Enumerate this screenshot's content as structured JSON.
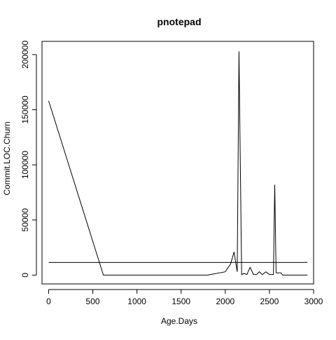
{
  "chart_data": {
    "type": "line",
    "title": "pnotepad",
    "xlabel": "Age.Days",
    "ylabel": "Commit.LOC.Churn",
    "xlim": [
      -75,
      3000
    ],
    "ylim": [
      -8000,
      212000
    ],
    "x_ticks": [
      0,
      500,
      1000,
      1500,
      2000,
      2500,
      3000
    ],
    "x_tick_labels": [
      "0",
      "500",
      "1000",
      "1500",
      "2000",
      "2500",
      "3000"
    ],
    "y_ticks": [
      0,
      50000,
      100000,
      150000,
      200000
    ],
    "y_tick_labels": [
      "0",
      "50000",
      "100000",
      "150000",
      "200000"
    ],
    "grid": false,
    "series": [
      {
        "values_x": [
          0,
          620,
          1800,
          2000,
          2060,
          2100,
          2135,
          2155,
          2185,
          2215,
          2245,
          2280,
          2320,
          2355,
          2385,
          2420,
          2460,
          2500,
          2545,
          2560,
          2575,
          2605,
          2630,
          2650,
          2930
        ],
        "values_y": [
          158000,
          0,
          0,
          3000,
          10000,
          21000,
          3000,
          203000,
          500,
          1500,
          500,
          7000,
          500,
          500,
          3000,
          500,
          3000,
          500,
          500,
          82000,
          2000,
          2000,
          2000,
          0,
          0
        ]
      }
    ],
    "reference_lines": [
      {
        "orientation": "horizontal",
        "y": 11500,
        "x_start": 0,
        "x_end": 2930
      }
    ]
  }
}
